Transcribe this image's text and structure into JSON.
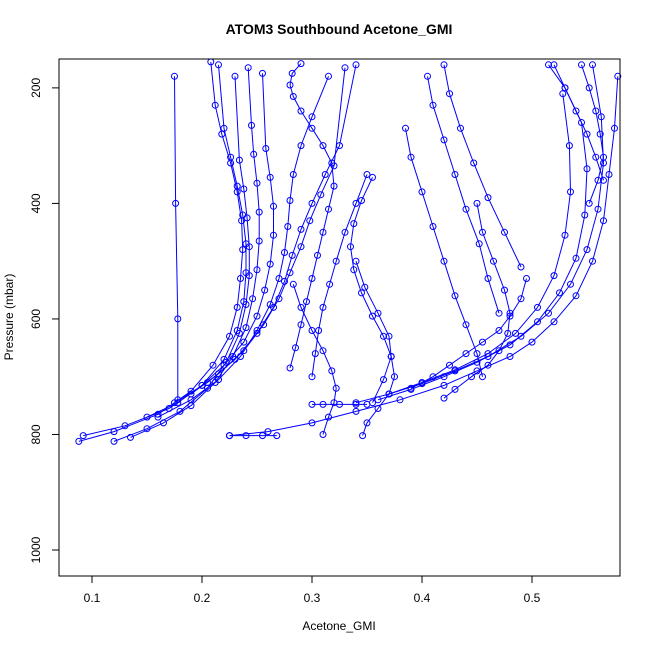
{
  "chart_data": {
    "type": "line",
    "title": "ATOM3 Southbound Acetone_GMI",
    "xlabel": "Acetone_GMI",
    "ylabel": "Pressure (mbar)",
    "xlim": [
      0.07,
      0.58
    ],
    "ylim": [
      1045,
      150
    ],
    "y_reversed": true,
    "x_ticks": [
      0.1,
      0.2,
      0.3,
      0.4,
      0.5
    ],
    "x_tick_labels": [
      "0.1",
      "0.2",
      "0.3",
      "0.4",
      "0.5"
    ],
    "y_ticks": [
      200,
      400,
      600,
      800,
      1000
    ],
    "y_tick_labels": [
      "200",
      "400",
      "600",
      "800",
      "1000"
    ],
    "grid": false,
    "marker": "open-circle",
    "color": "#0000ff",
    "series": [
      {
        "x": [
          0.088,
          0.12,
          0.16,
          0.19,
          0.21,
          0.225,
          0.232,
          0.235,
          0.237,
          0.236,
          0.232,
          0.226,
          0.218,
          0.212,
          0.208
        ],
        "y": [
          812,
          795,
          765,
          725,
          680,
          630,
          580,
          530,
          480,
          430,
          380,
          330,
          280,
          230,
          155
        ]
      },
      {
        "x": [
          0.092,
          0.13,
          0.17,
          0.2,
          0.22,
          0.232,
          0.238,
          0.24,
          0.24,
          0.237,
          0.232,
          0.226,
          0.22,
          0.215
        ],
        "y": [
          802,
          785,
          755,
          715,
          670,
          620,
          570,
          520,
          470,
          420,
          370,
          320,
          270,
          160
        ]
      },
      {
        "x": [
          0.12,
          0.15,
          0.18,
          0.205,
          0.222,
          0.234,
          0.24,
          0.243,
          0.243,
          0.241,
          0.238,
          0.234,
          0.23
        ],
        "y": [
          812,
          790,
          760,
          720,
          675,
          625,
          575,
          525,
          475,
          425,
          375,
          325,
          180
        ]
      },
      {
        "x": [
          0.135,
          0.165,
          0.19,
          0.212,
          0.228,
          0.24,
          0.246,
          0.25,
          0.252,
          0.252,
          0.25,
          0.247,
          0.245,
          0.242
        ],
        "y": [
          805,
          780,
          750,
          710,
          665,
          615,
          565,
          515,
          465,
          415,
          365,
          315,
          265,
          165
        ]
      },
      {
        "x": [
          0.15,
          0.178,
          0.2,
          0.22,
          0.238,
          0.25,
          0.257,
          0.262,
          0.265,
          0.265,
          0.262,
          0.258,
          0.255
        ],
        "y": [
          770,
          745,
          715,
          680,
          640,
          595,
          550,
          505,
          455,
          405,
          355,
          305,
          175
        ]
      },
      {
        "x": [
          0.16,
          0.19,
          0.215,
          0.235,
          0.25,
          0.262,
          0.27,
          0.275,
          0.278,
          0.28,
          0.283,
          0.29,
          0.3,
          0.315
        ],
        "y": [
          770,
          740,
          705,
          665,
          620,
          575,
          530,
          485,
          440,
          395,
          350,
          300,
          250,
          180
        ]
      },
      {
        "x": [
          0.175,
          0.205,
          0.23,
          0.25,
          0.265,
          0.275,
          0.282,
          0.29,
          0.3,
          0.312,
          0.325,
          0.34
        ],
        "y": [
          745,
          710,
          670,
          625,
          580,
          535,
          490,
          445,
          400,
          350,
          300,
          160
        ]
      },
      {
        "x": [
          0.178,
          0.178,
          0.176,
          0.175
        ],
        "y": [
          740,
          600,
          400,
          180
        ]
      },
      {
        "x": [
          0.19,
          0.215,
          0.238,
          0.256,
          0.27,
          0.28,
          0.29,
          0.298,
          0.308,
          0.32,
          0.33
        ],
        "y": [
          730,
          695,
          655,
          610,
          565,
          520,
          475,
          430,
          385,
          335,
          165
        ]
      },
      {
        "x": [
          0.225,
          0.24,
          0.255,
          0.268
        ],
        "y": [
          802,
          802,
          802,
          802
        ]
      },
      {
        "x": [
          0.28,
          0.285,
          0.29,
          0.295,
          0.3,
          0.305,
          0.31,
          0.315,
          0.32,
          0.318,
          0.31,
          0.3,
          0.29,
          0.283,
          0.28,
          0.282,
          0.29
        ],
        "y": [
          685,
          650,
          610,
          570,
          530,
          490,
          450,
          410,
          370,
          330,
          300,
          270,
          240,
          215,
          195,
          175,
          158
        ]
      },
      {
        "x": [
          0.3,
          0.303,
          0.306,
          0.31,
          0.316,
          0.322,
          0.33,
          0.34,
          0.35
        ],
        "y": [
          700,
          660,
          620,
          580,
          540,
          500,
          450,
          400,
          350
        ]
      },
      {
        "x": [
          0.31,
          0.315,
          0.32,
          0.322,
          0.318,
          0.31,
          0.3,
          0.29,
          0.283
        ],
        "y": [
          800,
          770,
          745,
          720,
          690,
          655,
          620,
          580,
          540
        ]
      },
      {
        "x": [
          0.3,
          0.31,
          0.325,
          0.34,
          0.35
        ],
        "y": [
          748,
          748,
          748,
          748,
          748
        ]
      },
      {
        "x": [
          0.346,
          0.35,
          0.36,
          0.37,
          0.375,
          0.372,
          0.365,
          0.355,
          0.345,
          0.338,
          0.335,
          0.338,
          0.345,
          0.355
        ],
        "y": [
          802,
          780,
          755,
          730,
          700,
          665,
          630,
          595,
          555,
          515,
          475,
          435,
          395,
          355
        ]
      },
      {
        "x": [
          0.355,
          0.365,
          0.372,
          0.37,
          0.36,
          0.348,
          0.34
        ],
        "y": [
          745,
          705,
          665,
          630,
          590,
          545,
          500
        ]
      },
      {
        "x": [
          0.225,
          0.26,
          0.3,
          0.34,
          0.38,
          0.42,
          0.45,
          0.48,
          0.5,
          0.52,
          0.54,
          0.555,
          0.565,
          0.57,
          0.575,
          0.578
        ],
        "y": [
          802,
          795,
          780,
          760,
          740,
          715,
          690,
          665,
          640,
          605,
          560,
          500,
          430,
          350,
          270,
          180
        ]
      },
      {
        "x": [
          0.34,
          0.37,
          0.4,
          0.43,
          0.46,
          0.49,
          0.515,
          0.535,
          0.55,
          0.56,
          0.565,
          0.563,
          0.555
        ],
        "y": [
          745,
          730,
          712,
          690,
          665,
          630,
          590,
          540,
          480,
          410,
          330,
          250,
          160
        ]
      },
      {
        "x": [
          0.36,
          0.39,
          0.42,
          0.45,
          0.48,
          0.505,
          0.525,
          0.54,
          0.548,
          0.55,
          0.545,
          0.53,
          0.515
        ],
        "y": [
          740,
          722,
          700,
          675,
          645,
          605,
          555,
          495,
          420,
          340,
          260,
          200,
          160
        ]
      },
      {
        "x": [
          0.37,
          0.4,
          0.43,
          0.46,
          0.485,
          0.505,
          0.52,
          0.53,
          0.535,
          0.534,
          0.528
        ],
        "y": [
          730,
          710,
          688,
          660,
          625,
          580,
          525,
          455,
          380,
          300,
          210
        ]
      },
      {
        "x": [
          0.39,
          0.41,
          0.425,
          0.44,
          0.455,
          0.47,
          0.48,
          0.49,
          0.495
        ],
        "y": [
          720,
          700,
          680,
          660,
          640,
          620,
          595,
          565,
          530
        ]
      },
      {
        "x": [
          0.42,
          0.43,
          0.445,
          0.46,
          0.47,
          0.478,
          0.48,
          0.475,
          0.465,
          0.455,
          0.45
        ],
        "y": [
          737,
          722,
          700,
          680,
          655,
          625,
          590,
          550,
          500,
          450,
          400
        ]
      },
      {
        "x": [
          0.385,
          0.39,
          0.4,
          0.41,
          0.42,
          0.43,
          0.44,
          0.45,
          0.455
        ],
        "y": [
          270,
          320,
          380,
          440,
          500,
          560,
          610,
          660,
          700
        ]
      },
      {
        "x": [
          0.405,
          0.41,
          0.42,
          0.43,
          0.44,
          0.452,
          0.46,
          0.47
        ],
        "y": [
          180,
          230,
          290,
          350,
          410,
          470,
          530,
          590
        ]
      },
      {
        "x": [
          0.42,
          0.425,
          0.435,
          0.447,
          0.46,
          0.475,
          0.49
        ],
        "y": [
          160,
          210,
          270,
          330,
          390,
          450,
          510
        ]
      },
      {
        "x": [
          0.52,
          0.53,
          0.54,
          0.55,
          0.558,
          0.565
        ],
        "y": [
          160,
          200,
          240,
          280,
          320,
          360
        ]
      },
      {
        "x": [
          0.545,
          0.552,
          0.558,
          0.562,
          0.565,
          0.56,
          0.552
        ],
        "y": [
          160,
          200,
          240,
          280,
          320,
          360,
          400
        ]
      }
    ]
  }
}
